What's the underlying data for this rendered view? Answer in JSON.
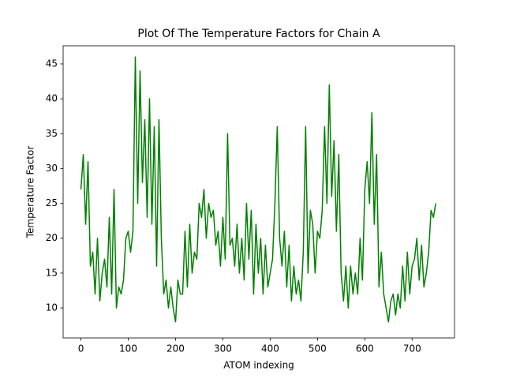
{
  "chart_data": {
    "type": "line",
    "title": "Plot Of The Temperature Factors for Chain A",
    "xlabel": "ATOM indexing",
    "ylabel": "Temperature Factor",
    "x": [
      0,
      5,
      10,
      15,
      20,
      25,
      30,
      35,
      40,
      45,
      50,
      55,
      60,
      65,
      70,
      75,
      80,
      85,
      90,
      95,
      100,
      105,
      110,
      115,
      120,
      125,
      130,
      135,
      140,
      145,
      150,
      155,
      160,
      165,
      170,
      175,
      180,
      185,
      190,
      195,
      200,
      205,
      210,
      215,
      220,
      225,
      230,
      235,
      240,
      245,
      250,
      255,
      260,
      265,
      270,
      275,
      280,
      285,
      290,
      295,
      300,
      305,
      310,
      315,
      320,
      325,
      330,
      335,
      340,
      345,
      350,
      355,
      360,
      365,
      370,
      375,
      380,
      385,
      390,
      395,
      400,
      405,
      410,
      415,
      420,
      425,
      430,
      435,
      440,
      445,
      450,
      455,
      460,
      465,
      470,
      475,
      480,
      485,
      490,
      495,
      500,
      505,
      510,
      515,
      520,
      525,
      530,
      535,
      540,
      545,
      550,
      555,
      560,
      565,
      570,
      575,
      580,
      585,
      590,
      595,
      600,
      605,
      610,
      615,
      620,
      625,
      630,
      635,
      640,
      645,
      650,
      655,
      660,
      665,
      670,
      675,
      680,
      685,
      690,
      695,
      700,
      705,
      710,
      715,
      720,
      725,
      730,
      735,
      740,
      745,
      750
    ],
    "series": [
      {
        "name": "Chain A",
        "color": "#008000",
        "values": [
          27,
          32,
          22,
          31,
          16,
          18,
          12,
          20,
          11,
          15,
          17,
          13,
          23,
          12,
          27,
          10,
          13,
          12,
          14,
          20,
          21,
          18,
          21,
          46,
          25,
          44,
          28,
          37,
          23,
          40,
          22,
          36,
          16,
          37,
          20,
          12,
          14,
          10,
          13,
          10,
          8,
          14,
          12,
          12,
          21,
          13,
          22,
          15,
          18,
          17,
          25,
          23,
          27,
          20,
          25,
          23,
          24,
          19,
          21,
          16,
          23,
          17,
          35,
          19,
          20,
          16,
          22,
          15,
          20,
          14,
          25,
          17,
          24,
          12,
          22,
          15,
          20,
          12,
          19,
          13,
          15,
          17,
          25,
          36,
          20,
          16,
          21,
          13,
          19,
          11,
          16,
          12,
          14,
          11,
          18,
          36,
          15,
          24,
          22,
          15,
          21,
          20,
          24,
          36,
          25,
          42,
          26,
          34,
          21,
          32,
          15,
          11,
          16,
          10,
          16,
          12,
          15,
          12,
          20,
          14,
          27,
          31,
          25,
          38,
          22,
          32,
          13,
          18,
          12,
          10,
          8,
          11,
          12,
          9,
          12,
          10,
          16,
          11,
          18,
          12,
          16,
          17,
          20,
          14,
          19,
          13,
          15,
          18,
          24,
          23,
          25
        ]
      }
    ],
    "xlim": [
      -37.6,
      789.6
    ],
    "ylim": [
      5.7,
      47.6
    ],
    "xticks": [
      0,
      100,
      200,
      300,
      400,
      500,
      600,
      700
    ],
    "yticks": [
      10,
      15,
      20,
      25,
      30,
      35,
      40,
      45
    ]
  }
}
